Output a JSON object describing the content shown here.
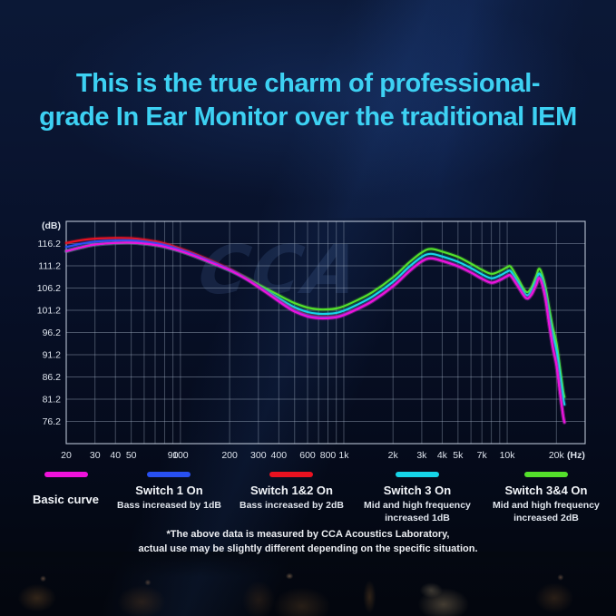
{
  "title": {
    "line1": "This is the true charm of professional-",
    "line2": "grade In Ear Monitor over the traditional IEM"
  },
  "watermark": "CCA",
  "chart_data": {
    "type": "line",
    "x_scale": "log",
    "x_unit_label": "(Hz)",
    "y_unit_label": "(dB)",
    "x_range": [
      20,
      30000
    ],
    "y_range": [
      71.2,
      121.2
    ],
    "grid": "on",
    "x_gridlines": [
      20,
      30,
      40,
      50,
      60,
      70,
      80,
      90,
      100,
      200,
      300,
      400,
      500,
      600,
      700,
      800,
      900,
      1000,
      2000,
      3000,
      4000,
      5000,
      6000,
      7000,
      8000,
      9000,
      10000,
      20000,
      30000
    ],
    "y_gridlines": [
      121.2,
      116.2,
      111.2,
      106.2,
      101.2,
      96.2,
      91.2,
      86.2,
      81.2,
      76.2,
      71.2
    ],
    "x_ticks": [
      {
        "v": 20,
        "label": "20"
      },
      {
        "v": 30,
        "label": "30"
      },
      {
        "v": 40,
        "label": "40"
      },
      {
        "v": 50,
        "label": "50"
      },
      {
        "v": 90,
        "label": "90"
      },
      {
        "v": 100,
        "label": "100"
      },
      {
        "v": 200,
        "label": "200"
      },
      {
        "v": 300,
        "label": "300"
      },
      {
        "v": 400,
        "label": "400"
      },
      {
        "v": 600,
        "label": "600"
      },
      {
        "v": 800,
        "label": "800"
      },
      {
        "v": 1000,
        "label": "1k"
      },
      {
        "v": 2000,
        "label": "2k"
      },
      {
        "v": 3000,
        "label": "3k"
      },
      {
        "v": 4000,
        "label": "4k"
      },
      {
        "v": 5000,
        "label": "5k"
      },
      {
        "v": 7000,
        "label": "7k"
      },
      {
        "v": 10000,
        "label": "10k"
      },
      {
        "v": 20000,
        "label": "20k"
      }
    ],
    "y_ticks": [
      {
        "v": 116.2,
        "label": "116.2"
      },
      {
        "v": 111.2,
        "label": "111.2"
      },
      {
        "v": 106.2,
        "label": "106.2"
      },
      {
        "v": 101.2,
        "label": "101.2"
      },
      {
        "v": 96.2,
        "label": "96.2"
      },
      {
        "v": 91.2,
        "label": "91.2"
      },
      {
        "v": 86.2,
        "label": "86.2"
      },
      {
        "v": 81.2,
        "label": "81.2"
      },
      {
        "v": 76.2,
        "label": "76.2"
      }
    ],
    "frequencies": [
      20,
      25,
      30,
      40,
      50,
      60,
      70,
      80,
      100,
      120,
      150,
      200,
      250,
      300,
      350,
      400,
      450,
      500,
      600,
      700,
      800,
      900,
      1000,
      1200,
      1500,
      2000,
      2500,
      3000,
      3400,
      4000,
      5000,
      6000,
      7000,
      8000,
      9000,
      10000,
      10500,
      11500,
      13000,
      14000,
      15000,
      15800,
      17000,
      18000,
      19000,
      20000,
      21000,
      22000,
      22400
    ],
    "series": [
      {
        "name": "Basic curve",
        "color": "#ef12da",
        "values": [
          114.5,
          115.4,
          116.0,
          116.35,
          116.4,
          116.2,
          115.9,
          115.5,
          114.5,
          113.5,
          112.1,
          110.2,
          108.3,
          106.4,
          104.7,
          103.2,
          101.9,
          100.9,
          99.8,
          99.4,
          99.4,
          99.6,
          100.1,
          101.4,
          103.3,
          106.6,
          109.9,
          112.2,
          112.9,
          112.3,
          111.1,
          109.7,
          108.3,
          107.4,
          108.0,
          108.9,
          109.0,
          106.9,
          104.0,
          104.6,
          106.8,
          108.4,
          104.5,
          98.5,
          93.0,
          89.0,
          83.0,
          77.5,
          76.0
        ]
      },
      {
        "name": "Switch 1 On",
        "color": "#2850f2",
        "values": [
          115.45,
          116.2,
          116.65,
          116.9,
          116.9,
          116.65,
          116.3,
          115.88,
          114.8,
          113.78,
          112.32,
          110.35,
          108.4,
          106.5,
          104.8,
          103.32,
          102.05,
          101.05,
          99.95,
          99.55,
          99.55,
          99.72,
          100.2,
          101.45,
          103.3,
          106.6,
          109.9,
          112.2,
          112.9,
          112.3,
          111.1,
          109.7,
          108.3,
          107.4,
          108.0,
          108.9,
          109.0,
          106.9,
          104.0,
          104.6,
          106.8,
          108.4,
          104.5,
          98.5,
          93.0,
          89.0,
          83.0,
          77.5,
          76.0
        ]
      },
      {
        "name": "Switch 1&2 On",
        "color": "#ea1220",
        "values": [
          116.35,
          117.0,
          117.3,
          117.45,
          117.4,
          117.1,
          116.7,
          116.25,
          115.1,
          114.05,
          112.55,
          110.5,
          108.5,
          106.6,
          104.9,
          103.45,
          102.2,
          101.2,
          100.1,
          99.7,
          99.7,
          99.85,
          100.3,
          101.5,
          103.3,
          106.6,
          109.9,
          112.2,
          112.9,
          112.3,
          111.1,
          109.7,
          108.3,
          107.4,
          108.0,
          108.9,
          109.0,
          106.9,
          104.0,
          104.6,
          106.8,
          108.4,
          104.5,
          98.5,
          93.0,
          89.0,
          83.0,
          77.5,
          76.0
        ]
      },
      {
        "name": "Switch 3 On",
        "color": "#16d5e8",
        "values": [
          114.5,
          115.4,
          116.0,
          116.35,
          116.4,
          116.2,
          115.9,
          115.5,
          114.5,
          113.5,
          112.1,
          110.2,
          108.45,
          106.7,
          105.2,
          103.9,
          102.75,
          101.85,
          100.8,
          100.4,
          100.4,
          100.6,
          101.1,
          102.4,
          104.3,
          107.6,
          110.9,
          113.2,
          113.9,
          113.3,
          112.1,
          110.7,
          109.3,
          108.4,
          109.0,
          109.9,
          110.0,
          107.8,
          104.7,
          105.4,
          107.8,
          109.4,
          105.8,
          100.5,
          95.6,
          92.2,
          86.8,
          81.5,
          80.0
        ]
      },
      {
        "name": "Switch 3&4 On",
        "color": "#54e02b",
        "values": [
          114.5,
          115.4,
          116.0,
          116.35,
          116.4,
          116.2,
          115.9,
          115.5,
          114.5,
          113.5,
          112.1,
          110.2,
          108.6,
          107.0,
          105.7,
          104.6,
          103.6,
          102.8,
          101.8,
          101.4,
          101.4,
          101.6,
          102.1,
          103.4,
          105.3,
          108.6,
          111.9,
          114.2,
          115.0,
          114.4,
          113.2,
          111.7,
          110.3,
          109.4,
          110.0,
          110.9,
          111.0,
          108.7,
          105.4,
          106.2,
          108.8,
          110.5,
          107.1,
          102.1,
          97.4,
          94.0,
          88.5,
          83.1,
          81.7
        ]
      }
    ]
  },
  "legend": [
    {
      "label": "Basic curve",
      "sub": "",
      "color": "#ef12da"
    },
    {
      "label": "Switch 1 On",
      "sub": "Bass increased by 1dB",
      "color": "#2850f2"
    },
    {
      "label": "Switch 1&2 On",
      "sub": "Bass increased by 2dB",
      "color": "#ea1220"
    },
    {
      "label": "Switch 3 On",
      "sub": "Mid and high frequency increased 1dB",
      "color": "#16d5e8"
    },
    {
      "label": "Switch 3&4 On",
      "sub": "Mid and high frequency increased 2dB",
      "color": "#54e02b"
    }
  ],
  "footnote": {
    "line1": "*The above data is measured by CCA Acoustics Laboratory,",
    "line2": "actual use may be slightly different depending on the specific situation."
  }
}
